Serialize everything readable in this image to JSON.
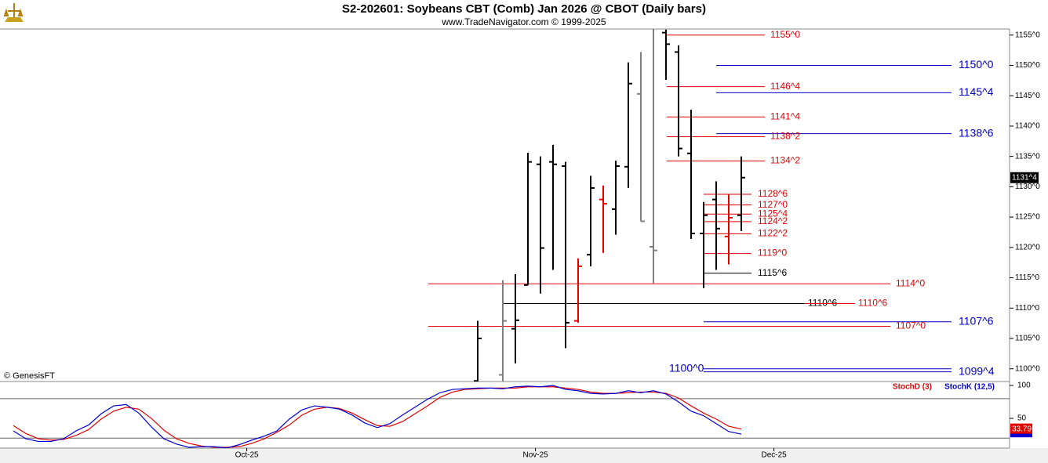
{
  "header": {
    "title": "S2-202601:  Soybeans CBT (Comb) Jan 2026 @ CBOT  (Daily bars)",
    "subtitle": "www.TradeNavigator.com © 1999-2025",
    "watermark": "© GenesisFT"
  },
  "chart_data": [
    {
      "type": "ohlc",
      "x": [
        37,
        39,
        40,
        41,
        42,
        43,
        44,
        45,
        46,
        47,
        48,
        49,
        50,
        51,
        52,
        53,
        54,
        55,
        56,
        57,
        58
      ],
      "open": [
        1098,
        1099,
        1106.6,
        1113.8,
        1133.7,
        1134.1,
        1133.4,
        1107.9,
        1118.8,
        1127.9,
        1126.3,
        1133.3,
        1145.3,
        1120.1,
        1155.4,
        1152.2,
        1135.5,
        1122.3,
        1127.9,
        1121.8,
        1125.3
      ],
      "high": [
        1107.9,
        1114.6,
        1115.6,
        1135.6,
        1135.0,
        1136.9,
        1134.1,
        1118.2,
        1131.8,
        1130.2,
        1134.3,
        1150.5,
        1152.2,
        1156.5,
        1155.9,
        1153.3,
        1142.7,
        1127.5,
        1130.9,
        1128.8,
        1135.0
      ],
      "low": [
        1096,
        1097,
        1100.9,
        1113.8,
        1112.4,
        1116.3,
        1103.4,
        1107.6,
        1116.9,
        1119.1,
        1122.1,
        1129.8,
        1124.3,
        1114.1,
        1147.6,
        1135.0,
        1121.4,
        1113.3,
        1116.3,
        1117.2,
        1122.7
      ],
      "close": [
        1105,
        1107.9,
        1108,
        1134.1,
        1119.9,
        1133.7,
        1107.6,
        1116.9,
        1129.8,
        1127.2,
        1133.4,
        1147.0,
        1124.3,
        1119.5,
        1153.5,
        1136.3,
        1122.3,
        1125.3,
        1123.1,
        1124.9,
        1131.5
      ],
      "colors": [
        "#000000",
        "#808080",
        "#000000",
        "#000000",
        "#000000",
        "#000000",
        "#000000",
        "#e00000",
        "#000000",
        "#e00000",
        "#000000",
        "#000000",
        "#808080",
        "#808080",
        "#000000",
        "#000000",
        "#000000",
        "#000000",
        "#000000",
        "#e00000",
        "#000000"
      ],
      "xlim": [
        -1.0625,
        79.375
      ],
      "ylim": [
        1097.9,
        1156
      ],
      "yticks": [
        {
          "value": 1100,
          "label": "1100^0"
        },
        {
          "value": 1105,
          "label": "1105^0"
        },
        {
          "value": 1110,
          "label": "1110^0"
        },
        {
          "value": 1115,
          "label": "1115^0"
        },
        {
          "value": 1120,
          "label": "1120^0"
        },
        {
          "value": 1125,
          "label": "1125^0"
        },
        {
          "value": 1130,
          "label": "1130^0"
        },
        {
          "value": 1135,
          "label": "1135^0"
        },
        {
          "value": 1140,
          "label": "1140^0"
        },
        {
          "value": 1145,
          "label": "1145^0"
        },
        {
          "value": 1150,
          "label": "1150^0"
        },
        {
          "value": 1155,
          "label": "1155^0"
        }
      ],
      "last_label": {
        "value": 1131.5,
        "label": "1131^4"
      },
      "levels": [
        {
          "value": 1155,
          "label": "1155^0",
          "color": "#e00000"
        },
        {
          "value": 1150,
          "label": "1150^0",
          "color": "#0000c0"
        },
        {
          "value": 1146.5,
          "label": "1146^4",
          "color": "#e00000"
        },
        {
          "value": 1145.5,
          "label": "1145^4",
          "color": "#0000c0"
        },
        {
          "value": 1141.5,
          "label": "1141^4",
          "color": "#e00000"
        },
        {
          "value": 1138.75,
          "label": "1138^6",
          "color": "#0000c0"
        },
        {
          "value": 1138.25,
          "label": "1138^2",
          "color": "#e00000"
        },
        {
          "value": 1134.25,
          "label": "1134^2",
          "color": "#e00000"
        },
        {
          "value": 1128.75,
          "label": "1128^6",
          "color": "#e00000"
        },
        {
          "value": 1127,
          "label": "1127^0",
          "color": "#e00000"
        },
        {
          "value": 1125.5,
          "label": "1125^4",
          "color": "#e00000"
        },
        {
          "value": 1124.25,
          "label": "1124^2",
          "color": "#e00000"
        },
        {
          "value": 1122.25,
          "label": "1122^2",
          "color": "#e00000"
        },
        {
          "value": 1119,
          "label": "1119^0",
          "color": "#e00000"
        },
        {
          "value": 1115.75,
          "label": "1115^6",
          "color": "#000000"
        },
        {
          "value": 1114,
          "label": "1114^0",
          "color": "#e00000"
        },
        {
          "value": 1110.75,
          "label": "1110^6",
          "color": "#000000"
        },
        {
          "value": 1110.75,
          "label": "1110^6",
          "color": "#e00000"
        },
        {
          "value": 1107.75,
          "label": "1107^6",
          "color": "#0000c0"
        },
        {
          "value": 1107,
          "label": "1107^0",
          "color": "#e00000"
        },
        {
          "value": 1100,
          "label": "1100^0",
          "color": "#0000c0"
        },
        {
          "value": 1099.5,
          "label": "1099^4",
          "color": "#0000c0"
        }
      ]
    },
    {
      "type": "line",
      "x": [
        0,
        1,
        2,
        3,
        4,
        5,
        6,
        7,
        8,
        9,
        10,
        11,
        12,
        13,
        14,
        15,
        16,
        17,
        18,
        19,
        20,
        21,
        22,
        23,
        24,
        25,
        26,
        27,
        28,
        29,
        30,
        31,
        32,
        33,
        34,
        35,
        36,
        37,
        38,
        39,
        40,
        41,
        42,
        43,
        44,
        45,
        46,
        47,
        48,
        49,
        50,
        51,
        52,
        53,
        54,
        55,
        56,
        57,
        58
      ],
      "series": [
        {
          "name": "StochD (3)",
          "color": "#e00000",
          "values": [
            39,
            27,
            19,
            17,
            18,
            24,
            33,
            49,
            61,
            67,
            64,
            50,
            32,
            19,
            12,
            8,
            6,
            6,
            7,
            12,
            19,
            29,
            40,
            55,
            64,
            67,
            65,
            58,
            48,
            39,
            38,
            45,
            57,
            69,
            82,
            90,
            94,
            95,
            96,
            96,
            96,
            98,
            98,
            98,
            96,
            94,
            90,
            88,
            88,
            89,
            90,
            90,
            88,
            81,
            69,
            58,
            49,
            38,
            33.79
          ]
        },
        {
          "name": "StochK (12,5)",
          "color": "#0000d0",
          "values": [
            31,
            19,
            15,
            15,
            19,
            31,
            40,
            57,
            69,
            71,
            58,
            37,
            19,
            11,
            6,
            7,
            7,
            5,
            10,
            17,
            23,
            31,
            49,
            63,
            69,
            67,
            64,
            55,
            43,
            36,
            42,
            55,
            67,
            79,
            89,
            94,
            95,
            96,
            96,
            95,
            98,
            99,
            98,
            100,
            94,
            92,
            88,
            87,
            88,
            92,
            89,
            92,
            87,
            75,
            61,
            54,
            42,
            30,
            26
          ]
        }
      ],
      "xlim": [
        -1.0625,
        79.375
      ],
      "xticks": [
        {
          "value": 18.6,
          "label": "Oct-25"
        },
        {
          "value": 41.6,
          "label": "Nov-25"
        },
        {
          "value": 60.6,
          "label": "Dec-25"
        }
      ],
      "ylim": [
        4.8,
        106
      ],
      "yticks": [
        50,
        100
      ],
      "hlines": [
        80,
        20
      ]
    }
  ]
}
